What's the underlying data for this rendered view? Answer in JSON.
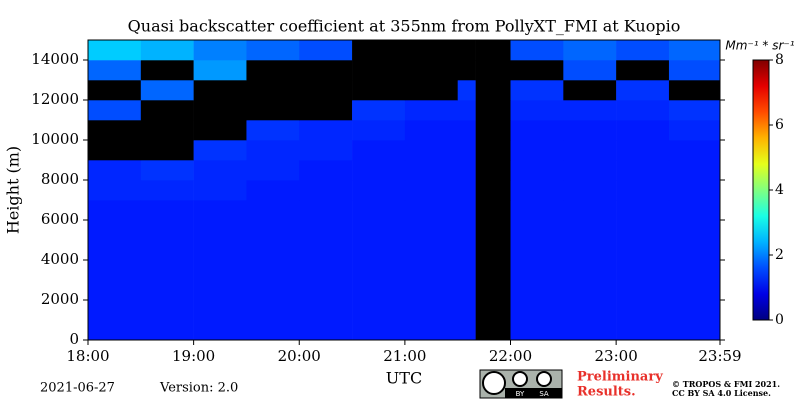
{
  "chart_data": {
    "type": "heatmap",
    "title": "Quasi backscatter coefficient at 355nm from PollyXT_FMI at Kuopio",
    "y_label": "Height (m)",
    "x_label": "UTC",
    "colorbar_label": "Mm⁻¹ * sr⁻¹",
    "xlim": [
      18,
      23.9833
    ],
    "ylim": [
      0,
      15000
    ],
    "xticks": [
      {
        "value": 18,
        "label": "18:00"
      },
      {
        "value": 19,
        "label": "19:00"
      },
      {
        "value": 20,
        "label": "20:00"
      },
      {
        "value": 21,
        "label": "21:00"
      },
      {
        "value": 22,
        "label": "22:00"
      },
      {
        "value": 23,
        "label": "23:00"
      },
      {
        "value": 23.9833,
        "label": "23:59"
      }
    ],
    "yticks": [
      0,
      2000,
      4000,
      6000,
      8000,
      10000,
      12000,
      14000
    ],
    "clim": [
      0,
      8
    ],
    "cticks": [
      0,
      2,
      4,
      6,
      8
    ],
    "colormap": "jet",
    "null_color": "#000000",
    "x_bins": [
      18,
      18.5,
      19,
      19.5,
      20,
      20.5,
      21,
      21.5,
      21.67,
      22,
      22.5,
      23,
      23.5,
      23.9833
    ],
    "y_bins": [
      0,
      7000,
      8000,
      9000,
      10000,
      11000,
      12000,
      13000,
      14000,
      15000
    ],
    "z": [
      [
        1.2,
        1.2,
        1.2,
        1.2,
        1.2,
        1.2,
        1.2,
        1.2,
        null,
        1.2,
        1.2,
        1.2,
        1.2
      ],
      [
        1.3,
        1.3,
        1.3,
        1.2,
        1.2,
        1.2,
        1.2,
        1.2,
        null,
        1.2,
        1.2,
        1.2,
        1.2
      ],
      [
        1.3,
        1.4,
        1.3,
        1.3,
        1.2,
        1.2,
        1.2,
        1.2,
        null,
        1.2,
        1.2,
        1.2,
        1.2
      ],
      [
        null,
        null,
        1.4,
        1.3,
        1.3,
        1.2,
        1.2,
        1.2,
        null,
        1.2,
        1.2,
        1.2,
        1.2
      ],
      [
        null,
        null,
        null,
        1.4,
        1.3,
        1.3,
        1.2,
        1.2,
        null,
        1.2,
        1.2,
        1.2,
        1.3
      ],
      [
        1.6,
        null,
        null,
        null,
        null,
        1.4,
        1.3,
        1.3,
        null,
        1.3,
        1.3,
        1.3,
        1.4
      ],
      [
        null,
        1.8,
        null,
        null,
        null,
        null,
        null,
        1.4,
        null,
        1.4,
        null,
        1.4,
        null
      ],
      [
        1.8,
        null,
        2.2,
        null,
        null,
        null,
        null,
        null,
        null,
        null,
        1.6,
        null,
        1.6
      ],
      [
        2.6,
        2.4,
        2.0,
        1.8,
        1.6,
        null,
        null,
        null,
        null,
        1.6,
        1.8,
        1.6,
        1.8
      ]
    ]
  },
  "footer": {
    "date": "2021-06-27",
    "version": "Version: 2.0",
    "preliminary": [
      "Preliminary",
      "Results."
    ],
    "copyright": [
      "© TROPOS & FMI 2021.",
      "CC BY SA 4.0 License."
    ],
    "badge": [
      "BY",
      "SA"
    ]
  }
}
